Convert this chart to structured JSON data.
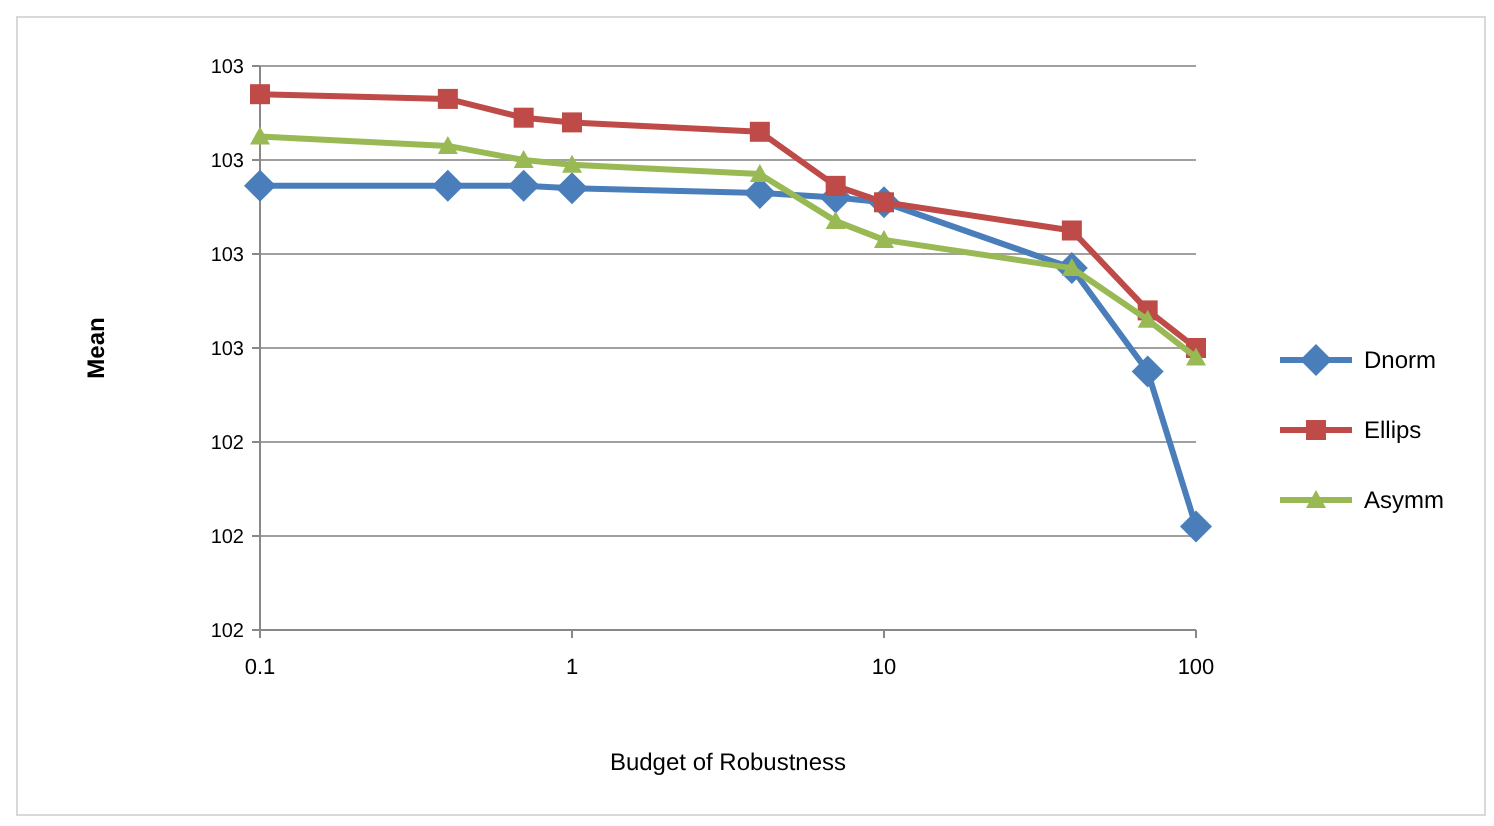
{
  "chart_data": {
    "type": "line",
    "xlabel": "Budget of Robustness",
    "ylabel": "Mean",
    "log": "x",
    "xlim": [
      0.1,
      100
    ],
    "xticks": [
      0.1,
      1,
      10,
      100
    ],
    "ylim": [
      102,
      103.2
    ],
    "yticks": [
      {
        "value": 102,
        "label": "102"
      },
      {
        "value": 102.2,
        "label": "102"
      },
      {
        "value": 102.4,
        "label": "102"
      },
      {
        "value": 102.6,
        "label": "103"
      },
      {
        "value": 102.8,
        "label": "103"
      },
      {
        "value": 103,
        "label": "103"
      },
      {
        "value": 103.2,
        "label": "103"
      }
    ],
    "grid": "y",
    "legend": "right",
    "x": [
      0.1,
      0.4,
      0.7,
      1,
      4,
      7,
      10,
      40,
      70,
      100
    ],
    "series": [
      {
        "name": "Dnorm",
        "color": "#4a7ebb",
        "marker": "diamond",
        "values": [
          102.945,
          102.945,
          102.945,
          102.94,
          102.93,
          102.92,
          102.91,
          102.77,
          102.55,
          102.22
        ]
      },
      {
        "name": "Ellips",
        "color": "#be4b48",
        "marker": "square",
        "values": [
          103.14,
          103.13,
          103.09,
          103.08,
          103.06,
          102.945,
          102.91,
          102.85,
          102.68,
          102.6
        ]
      },
      {
        "name": "Asymm",
        "color": "#98b954",
        "marker": "triangle",
        "values": [
          103.05,
          103.03,
          103.0,
          102.99,
          102.97,
          102.87,
          102.83,
          102.77,
          102.66,
          102.58
        ]
      }
    ]
  }
}
